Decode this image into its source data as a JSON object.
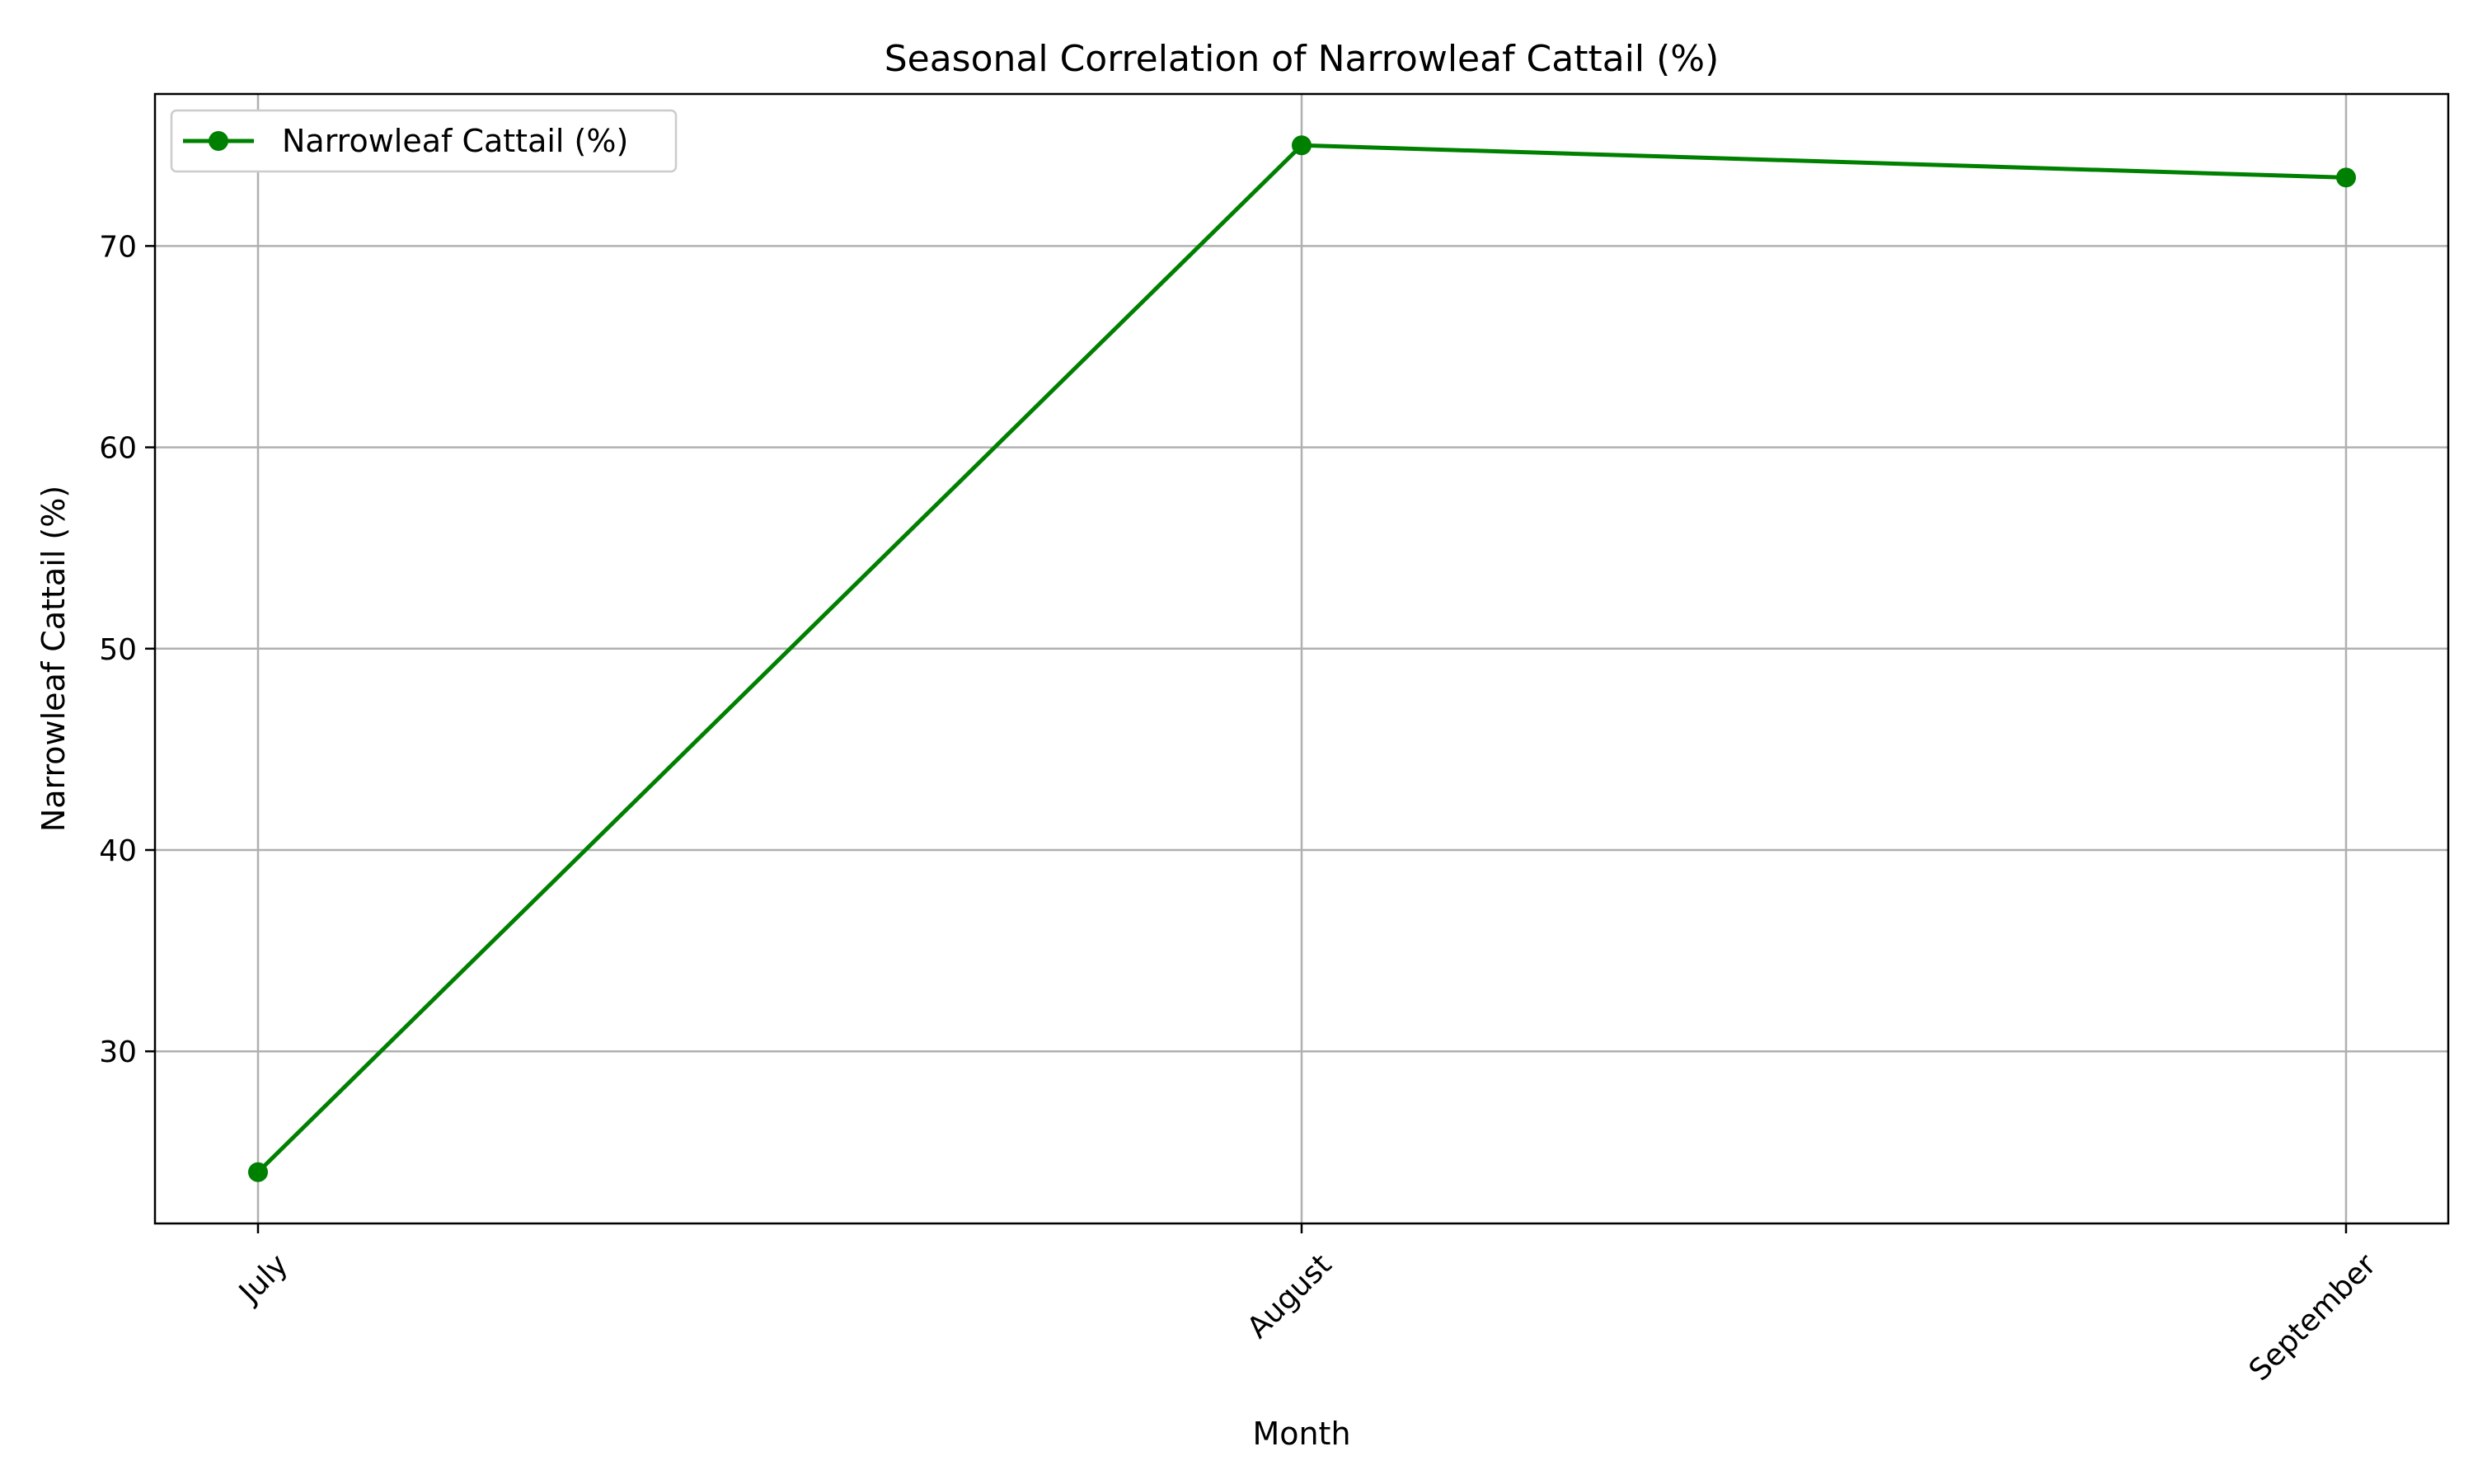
{
  "chart_data": {
    "type": "line",
    "title": "Seasonal Correlation of Narrowleaf Cattail (%)",
    "xlabel": "Month",
    "ylabel": "Narrowleaf Cattail (%)",
    "categories": [
      "July",
      "August",
      "September"
    ],
    "series": [
      {
        "name": "Narrowleaf Cattail (%)",
        "values": [
          24.0,
          75.0,
          73.4
        ],
        "color": "#008000",
        "marker": "circle"
      }
    ],
    "ylim": [
      21.45,
      77.55
    ],
    "yticks": [
      30,
      40,
      50,
      60,
      70
    ],
    "xtick_rotation_deg": 45,
    "grid": true,
    "legend_position": "upper-left"
  }
}
